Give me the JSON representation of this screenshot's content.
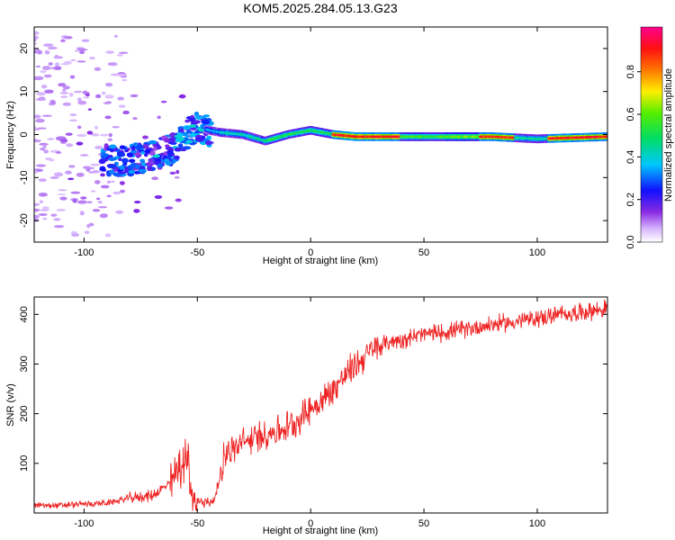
{
  "title": "KOM5.2025.284.05.13.G23",
  "chart_data": [
    {
      "type": "heatmap",
      "name": "spectrogram",
      "xlabel": "Height of straight line (km)",
      "ylabel": "Frequency (Hz)",
      "xlim": [
        -122,
        131
      ],
      "ylim": [
        -25,
        25
      ],
      "xticks": [
        -100,
        -50,
        0,
        50,
        100
      ],
      "yticks": [
        -20,
        -10,
        0,
        10,
        20
      ],
      "colorbar": {
        "label": "Normalized spectral amplitude",
        "range": [
          0,
          1
        ],
        "ticks": [
          "0.0",
          "0.2",
          "0.4",
          "0.6",
          "0.8"
        ],
        "colormap": "rainbow (violet to magenta)"
      },
      "ridge": {
        "description": "dominant frequency track vs height",
        "x": [
          -80,
          -70,
          -60,
          -50,
          -45,
          -40,
          -30,
          -20,
          -10,
          0,
          10,
          20,
          40,
          60,
          80,
          100,
          130
        ],
        "y": [
          -6,
          -5,
          -3,
          2,
          1,
          0.5,
          0,
          -1.5,
          0,
          1,
          0,
          -0.5,
          -0.5,
          -0.5,
          -0.5,
          -1,
          -0.5
        ]
      }
    },
    {
      "type": "line",
      "name": "snr",
      "xlabel": "Height of straight line (km)",
      "ylabel": "SNR (v/v)",
      "xlim": [
        -122,
        131
      ],
      "ylim": [
        0,
        435
      ],
      "xticks": [
        -100,
        -50,
        0,
        50,
        100
      ],
      "yticks": [
        100,
        200,
        300,
        400
      ],
      "color": "#ee2222",
      "series": [
        {
          "x": [
            -122,
            -110,
            -100,
            -90,
            -80,
            -70,
            -62,
            -58,
            -54,
            -52,
            -48,
            -45,
            -42,
            -40,
            -38,
            -35,
            -30,
            -25,
            -20,
            -15,
            -10,
            -5,
            0,
            5,
            10,
            15,
            20,
            25,
            30,
            35,
            40,
            50,
            60,
            70,
            80,
            90,
            100,
            110,
            120,
            131
          ],
          "y": [
            15,
            15,
            18,
            20,
            30,
            35,
            60,
            80,
            110,
            20,
            25,
            20,
            30,
            75,
            120,
            125,
            140,
            150,
            160,
            165,
            175,
            190,
            210,
            225,
            250,
            275,
            300,
            320,
            335,
            345,
            350,
            360,
            365,
            372,
            380,
            385,
            392,
            400,
            405,
            412
          ]
        }
      ]
    }
  ]
}
